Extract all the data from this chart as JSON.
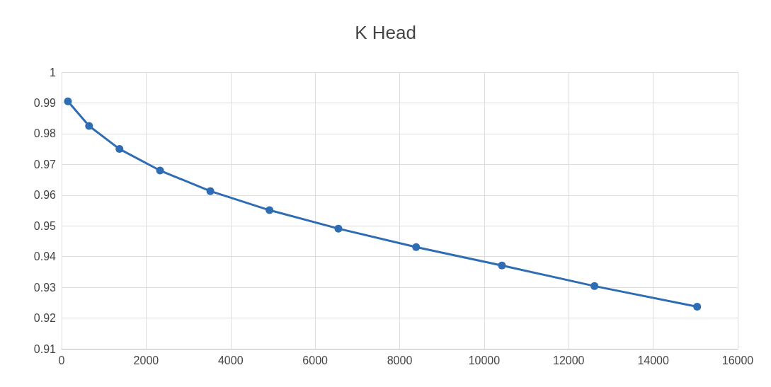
{
  "chart_data": {
    "type": "line",
    "title": "K Head",
    "x": [
      150,
      650,
      1370,
      2330,
      3520,
      4920,
      6550,
      8390,
      10420,
      12610,
      15040
    ],
    "series": [
      {
        "color": "#2e6db4",
        "values": [
          0.9905,
          0.9825,
          0.975,
          0.968,
          0.9613,
          0.9551,
          0.9491,
          0.9431,
          0.9371,
          0.9304,
          0.9237
        ]
      }
    ],
    "xlim": [
      0,
      16000
    ],
    "xticks": [
      0,
      2000,
      4000,
      6000,
      8000,
      10000,
      12000,
      14000,
      16000
    ],
    "ylim": [
      0.91,
      1
    ],
    "yticks": [
      0.91,
      0.92,
      0.93,
      0.94,
      0.95,
      0.96,
      0.97,
      0.98,
      0.99,
      1
    ],
    "grid": true,
    "marker": "circle",
    "line_style": "solid"
  }
}
